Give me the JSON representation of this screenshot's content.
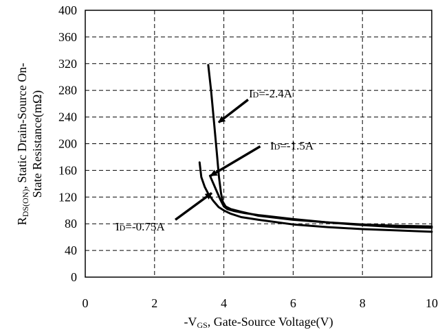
{
  "chart_data": {
    "type": "line",
    "title": "",
    "xlabel": {
      "prefix": "-V",
      "sub": "GS",
      "rest": ", Gate-Source Voltage(V)"
    },
    "ylabel": {
      "line1_prefix": "R",
      "line1_sub": "DS(ON)",
      "line1_rest": ", Static Drain-Source On-",
      "line2": "State Resistance(mΩ)"
    },
    "xlim": [
      0,
      10
    ],
    "ylim": [
      0,
      400
    ],
    "x_ticks": [
      "0",
      "2",
      "4",
      "6",
      "8",
      "10"
    ],
    "y_ticks": [
      "0",
      "40",
      "80",
      "120",
      "160",
      "200",
      "240",
      "280",
      "320",
      "360",
      "400"
    ],
    "grid": true,
    "series": [
      {
        "name": "ID=-2.4A",
        "x": [
          3.55,
          3.63,
          3.72,
          3.8,
          3.86,
          3.92,
          3.97,
          4.05,
          4.2,
          4.5,
          5.0,
          6.0,
          7.0,
          8.0,
          9.0,
          10.0
        ],
        "y": [
          318,
          280,
          230,
          185,
          150,
          125,
          113,
          106,
          102,
          98,
          92,
          86,
          82,
          79,
          77,
          76
        ]
      },
      {
        "name": "ID=-1.5A",
        "x": [
          3.6,
          3.7,
          3.8,
          3.9,
          4.0,
          4.1,
          4.3,
          4.6,
          5.0,
          6.0,
          7.0,
          8.0,
          9.0,
          10.0
        ],
        "y": [
          152,
          140,
          128,
          116,
          106,
          102,
          99,
          96,
          93,
          87,
          82,
          78,
          75,
          74
        ]
      },
      {
        "name": "ID=-0.75A",
        "x": [
          3.3,
          3.35,
          3.45,
          3.55,
          3.7,
          3.85,
          4.0,
          4.2,
          4.5,
          5.0,
          6.0,
          7.0,
          8.0,
          9.0,
          10.0
        ],
        "y": [
          172,
          150,
          135,
          125,
          114,
          105,
          100,
          95,
          90,
          86,
          79,
          75,
          72,
          70,
          68
        ]
      }
    ],
    "annotations": [
      {
        "prefix": "I",
        "sub": "D",
        "rest": "=-2.4A",
        "arrow_from": [
          4.7,
          266
        ],
        "arrow_to": [
          3.85,
          232
        ]
      },
      {
        "prefix": "I",
        "sub": "D",
        "rest": "=-1.5A",
        "arrow_from": [
          5.05,
          196
        ],
        "arrow_to": [
          3.62,
          152
        ]
      },
      {
        "prefix": "I",
        "sub": "D",
        "rest": "=-0.75A",
        "arrow_from": [
          2.6,
          86
        ],
        "arrow_to": [
          3.65,
          126
        ]
      }
    ]
  }
}
